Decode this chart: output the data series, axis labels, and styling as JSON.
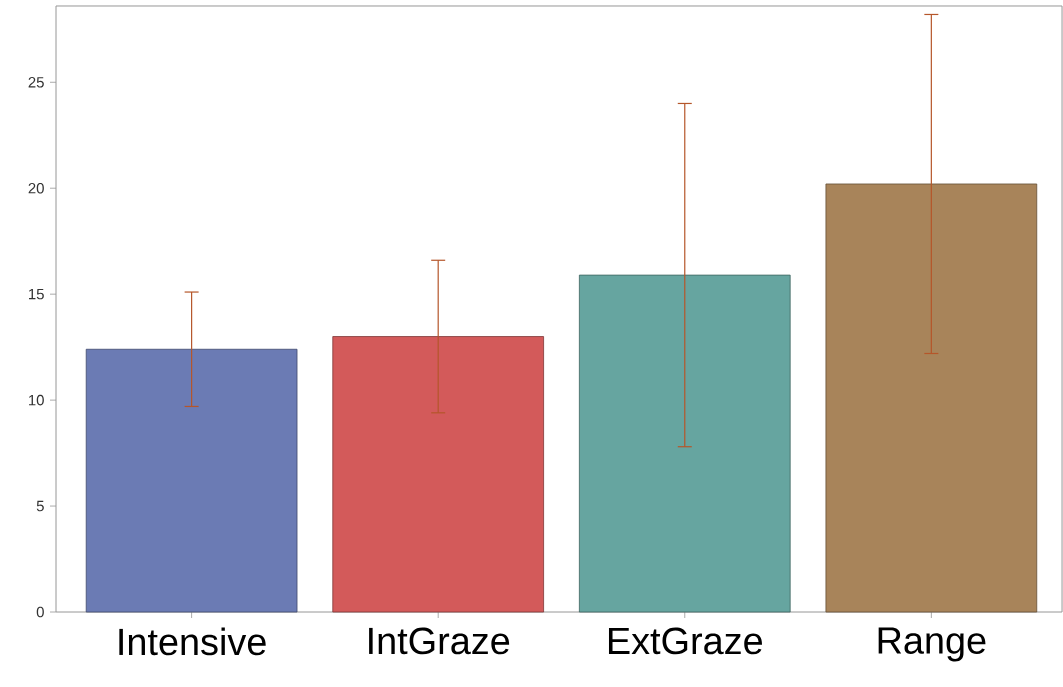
{
  "chart_data": {
    "type": "bar",
    "categories": [
      "Intensive",
      "IntGraze",
      "ExtGraze",
      "Range"
    ],
    "values": [
      12.4,
      13.0,
      15.9,
      20.2
    ],
    "errors": [
      2.7,
      3.6,
      8.1,
      8.0
    ],
    "colors": [
      "#6b7bb4",
      "#d35a5a",
      "#66a5a0",
      "#a8845a"
    ],
    "ylim": [
      0,
      28.6
    ],
    "yticks": [
      0,
      5,
      10,
      15,
      20,
      25
    ]
  }
}
